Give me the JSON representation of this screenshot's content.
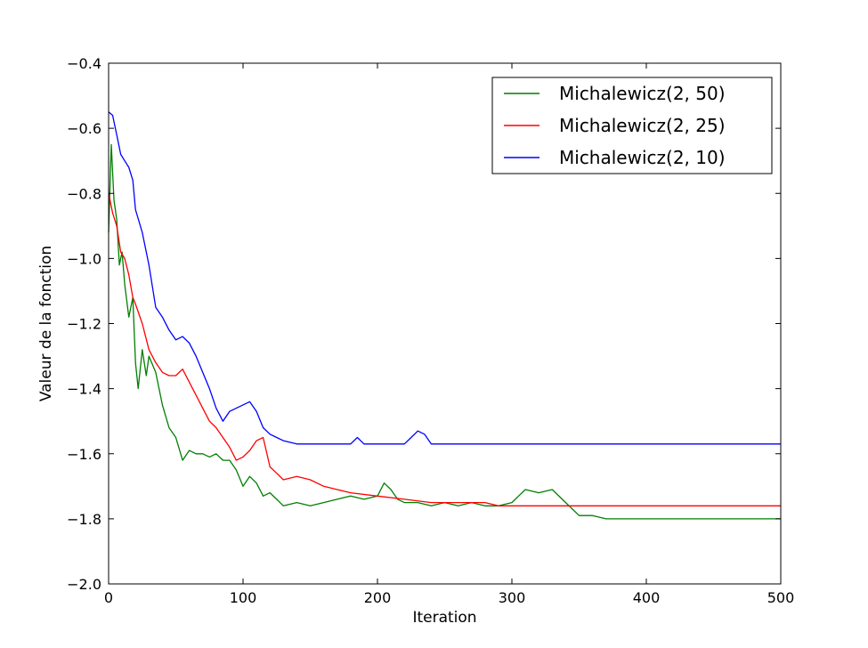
{
  "chart_data": {
    "type": "line",
    "title": "",
    "xlabel": "Iteration",
    "ylabel": "Valeur de la fonction",
    "xlim": [
      0,
      500
    ],
    "ylim": [
      -2.0,
      -0.4
    ],
    "xticks": [
      0,
      100,
      200,
      300,
      400,
      500
    ],
    "xtick_labels": [
      "0",
      "100",
      "200",
      "300",
      "400",
      "500"
    ],
    "yticks": [
      -2.0,
      -1.8,
      -1.6,
      -1.4,
      -1.2,
      -1.0,
      -0.8,
      -0.6,
      -0.4
    ],
    "ytick_labels": [
      "−2.0",
      "−1.8",
      "−1.6",
      "−1.4",
      "−1.2",
      "−1.0",
      "−0.8",
      "−0.6",
      "−0.4"
    ],
    "grid": false,
    "legend_position": "top-right",
    "series": [
      {
        "name": "Michalewicz(2, 50)",
        "color": "#007f00",
        "x": [
          0,
          2,
          4,
          6,
          8,
          10,
          12,
          15,
          18,
          20,
          22,
          25,
          28,
          30,
          35,
          40,
          45,
          50,
          55,
          60,
          65,
          70,
          75,
          80,
          85,
          90,
          95,
          100,
          105,
          110,
          115,
          120,
          125,
          130,
          140,
          150,
          160,
          170,
          180,
          190,
          200,
          205,
          210,
          215,
          220,
          230,
          240,
          250,
          260,
          270,
          280,
          290,
          300,
          305,
          310,
          320,
          330,
          340,
          345,
          350,
          360,
          370,
          380,
          400,
          450,
          500
        ],
        "y": [
          -0.92,
          -0.65,
          -0.82,
          -0.88,
          -1.02,
          -0.98,
          -1.08,
          -1.18,
          -1.12,
          -1.32,
          -1.4,
          -1.28,
          -1.36,
          -1.3,
          -1.35,
          -1.45,
          -1.52,
          -1.55,
          -1.62,
          -1.59,
          -1.6,
          -1.6,
          -1.61,
          -1.6,
          -1.62,
          -1.62,
          -1.65,
          -1.7,
          -1.67,
          -1.69,
          -1.73,
          -1.72,
          -1.74,
          -1.76,
          -1.75,
          -1.76,
          -1.75,
          -1.74,
          -1.73,
          -1.74,
          -1.73,
          -1.69,
          -1.71,
          -1.74,
          -1.75,
          -1.75,
          -1.76,
          -1.75,
          -1.76,
          -1.75,
          -1.76,
          -1.76,
          -1.75,
          -1.73,
          -1.71,
          -1.72,
          -1.71,
          -1.75,
          -1.77,
          -1.79,
          -1.79,
          -1.8,
          -1.8,
          -1.8,
          -1.8,
          -1.8
        ]
      },
      {
        "name": "Michalewicz(2, 25)",
        "color": "#ff0000",
        "x": [
          0,
          3,
          6,
          9,
          12,
          15,
          18,
          20,
          25,
          30,
          35,
          40,
          45,
          50,
          55,
          60,
          65,
          70,
          75,
          80,
          85,
          90,
          95,
          100,
          105,
          110,
          115,
          120,
          125,
          130,
          140,
          150,
          160,
          170,
          180,
          200,
          220,
          240,
          260,
          280,
          290,
          300,
          320,
          340,
          350,
          500
        ],
        "y": [
          -0.8,
          -0.86,
          -0.9,
          -0.98,
          -1.0,
          -1.05,
          -1.12,
          -1.14,
          -1.2,
          -1.28,
          -1.32,
          -1.35,
          -1.36,
          -1.36,
          -1.34,
          -1.38,
          -1.42,
          -1.46,
          -1.5,
          -1.52,
          -1.55,
          -1.58,
          -1.62,
          -1.61,
          -1.59,
          -1.56,
          -1.55,
          -1.64,
          -1.66,
          -1.68,
          -1.67,
          -1.68,
          -1.7,
          -1.71,
          -1.72,
          -1.73,
          -1.74,
          -1.75,
          -1.75,
          -1.75,
          -1.76,
          -1.76,
          -1.76,
          -1.76,
          -1.76,
          -1.76
        ]
      },
      {
        "name": "Michalewicz(2, 10)",
        "color": "#0000ff",
        "x": [
          0,
          3,
          6,
          9,
          12,
          15,
          18,
          20,
          25,
          30,
          35,
          40,
          45,
          50,
          55,
          60,
          65,
          70,
          75,
          80,
          85,
          90,
          95,
          100,
          105,
          110,
          115,
          120,
          125,
          130,
          140,
          150,
          160,
          170,
          180,
          185,
          190,
          200,
          210,
          220,
          225,
          230,
          235,
          240,
          260,
          280,
          300,
          350,
          400,
          450,
          500
        ],
        "y": [
          -0.55,
          -0.56,
          -0.62,
          -0.68,
          -0.7,
          -0.72,
          -0.76,
          -0.85,
          -0.92,
          -1.02,
          -1.15,
          -1.18,
          -1.22,
          -1.25,
          -1.24,
          -1.26,
          -1.3,
          -1.35,
          -1.4,
          -1.46,
          -1.5,
          -1.47,
          -1.46,
          -1.45,
          -1.44,
          -1.47,
          -1.52,
          -1.54,
          -1.55,
          -1.56,
          -1.57,
          -1.57,
          -1.57,
          -1.57,
          -1.57,
          -1.55,
          -1.57,
          -1.57,
          -1.57,
          -1.57,
          -1.55,
          -1.53,
          -1.54,
          -1.57,
          -1.57,
          -1.57,
          -1.57,
          -1.57,
          -1.57,
          -1.57,
          -1.57
        ]
      }
    ]
  }
}
